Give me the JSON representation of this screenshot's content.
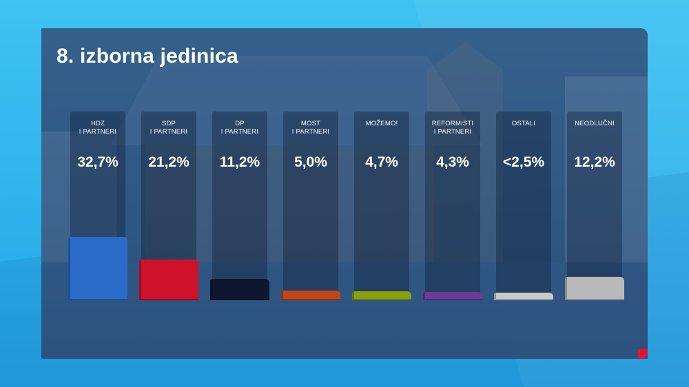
{
  "title": "8. izborna jedinica",
  "chart_data": {
    "type": "bar",
    "title": "8. izborna jedinica",
    "ylim": [
      0,
      100
    ],
    "categories": [
      {
        "line1": "HDZ",
        "line2": "I PARTNERI"
      },
      {
        "line1": "SDP",
        "line2": "I PARTNERI"
      },
      {
        "line1": "DP",
        "line2": "I PARTNERI"
      },
      {
        "line1": "MOST",
        "line2": "I PARTNERI"
      },
      {
        "line1": "MOŽEMO!",
        "line2": ""
      },
      {
        "line1": "REFORMISTI",
        "line2": "I PARTNERI"
      },
      {
        "line1": "OSTALI",
        "line2": ""
      },
      {
        "line1": "NEODLUČNI",
        "line2": ""
      }
    ],
    "values": [
      32.7,
      21.2,
      11.2,
      5.0,
      4.7,
      4.3,
      2.5,
      12.2
    ],
    "value_labels": [
      "32,7%",
      "21,2%",
      "11,2%",
      "5,0%",
      "4,7%",
      "4,3%",
      "<2,5%",
      "12,2%"
    ],
    "colors": [
      "#2a6bc7",
      "#d0122c",
      "#0e1630",
      "#c2461c",
      "#8aa10e",
      "#6b3a96",
      "#c9c9c9",
      "#b9b9b9"
    ]
  }
}
